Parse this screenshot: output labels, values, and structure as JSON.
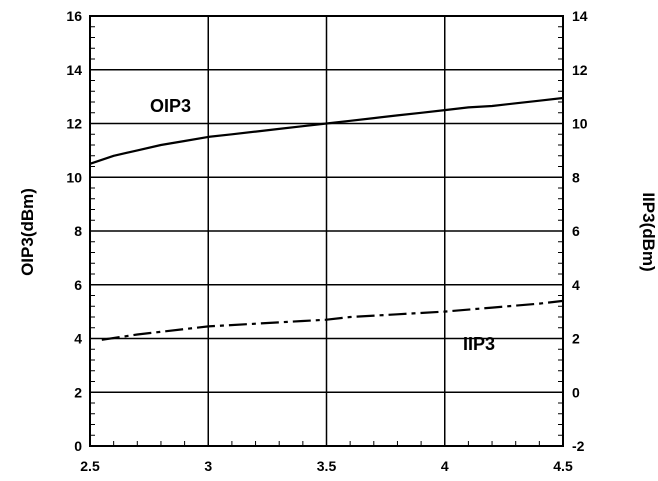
{
  "chart_data": {
    "type": "line",
    "title": "",
    "xlabel": "",
    "ylabel": "OIP3(dBm)",
    "y2label": "IIP3(dBm)",
    "xlim": [
      2.5,
      4.5
    ],
    "ylim": [
      0,
      16
    ],
    "y2lim": [
      -2,
      14
    ],
    "x_ticks": [
      "2.5",
      "3",
      "3.5",
      "4",
      "4.5"
    ],
    "y_ticks": [
      "0",
      "2",
      "4",
      "6",
      "8",
      "10",
      "12",
      "14",
      "16"
    ],
    "y2_ticks": [
      "-2",
      "0",
      "2",
      "4",
      "6",
      "8",
      "10",
      "12",
      "14"
    ],
    "grid": true,
    "legend": "none",
    "series": [
      {
        "name": "OIP3",
        "axis": "left",
        "style": "solid",
        "color": "#000000",
        "x": [
          2.5,
          2.6,
          2.7,
          2.8,
          2.9,
          3.0,
          3.1,
          3.2,
          3.3,
          3.4,
          3.5,
          3.6,
          3.7,
          3.8,
          3.9,
          4.0,
          4.1,
          4.2,
          4.3,
          4.4,
          4.5
        ],
        "y": [
          10.5,
          10.8,
          11.0,
          11.2,
          11.35,
          11.5,
          11.6,
          11.7,
          11.8,
          11.9,
          12.0,
          12.1,
          12.2,
          12.3,
          12.4,
          12.5,
          12.6,
          12.65,
          12.75,
          12.85,
          12.95
        ]
      },
      {
        "name": "IIP3",
        "axis": "right",
        "style": "dash-dot",
        "color": "#000000",
        "x": [
          2.55,
          2.7,
          2.9,
          3.0,
          3.2,
          3.4,
          3.5,
          3.6,
          3.8,
          4.0,
          4.2,
          4.4,
          4.5
        ],
        "y": [
          1.95,
          2.15,
          2.35,
          2.45,
          2.55,
          2.65,
          2.7,
          2.8,
          2.9,
          3.0,
          3.15,
          3.3,
          3.4
        ]
      }
    ]
  }
}
